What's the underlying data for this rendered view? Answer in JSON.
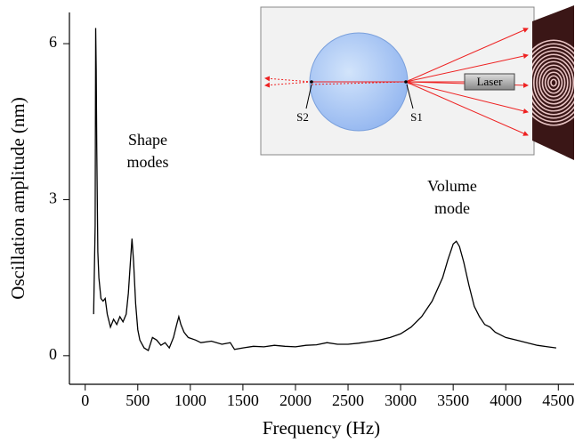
{
  "chart_data": {
    "type": "line",
    "x_label": "Frequency (Hz)",
    "y_label": "Oscillation amplitude (nm)",
    "annotations": [
      {
        "lines": [
          "Shape",
          "modes"
        ]
      },
      {
        "lines": [
          "Volume",
          "mode"
        ]
      }
    ],
    "inset_labels": [
      "S2",
      "S1",
      "Laser"
    ],
    "color": "#000000",
    "x": [
      80,
      95,
      100,
      105,
      110,
      120,
      130,
      150,
      170,
      190,
      210,
      240,
      270,
      300,
      330,
      360,
      390,
      410,
      430,
      445,
      460,
      480,
      500,
      520,
      560,
      600,
      640,
      680,
      720,
      760,
      800,
      840,
      870,
      890,
      910,
      940,
      980,
      1050,
      1100,
      1200,
      1300,
      1380,
      1420,
      1500,
      1600,
      1700,
      1800,
      1900,
      2000,
      2100,
      2200,
      2300,
      2400,
      2500,
      2600,
      2700,
      2800,
      2900,
      3000,
      3100,
      3200,
      3300,
      3400,
      3450,
      3500,
      3530,
      3560,
      3600,
      3650,
      3700,
      3750,
      3800,
      3850,
      3900,
      4000,
      4100,
      4200,
      4300,
      4400,
      4480
    ],
    "values": [
      0.8,
      2.5,
      6.3,
      5.5,
      4,
      2.0,
      1.5,
      1.1,
      1.05,
      1.1,
      0.8,
      0.55,
      0.7,
      0.6,
      0.75,
      0.65,
      0.8,
      1.2,
      1.8,
      2.25,
      1.8,
      1.0,
      0.5,
      0.3,
      0.15,
      0.1,
      0.35,
      0.3,
      0.2,
      0.25,
      0.15,
      0.35,
      0.6,
      0.75,
      0.6,
      0.45,
      0.35,
      0.3,
      0.25,
      0.28,
      0.22,
      0.25,
      0.12,
      0.15,
      0.18,
      0.17,
      0.2,
      0.18,
      0.17,
      0.2,
      0.21,
      0.25,
      0.22,
      0.22,
      0.24,
      0.27,
      0.3,
      0.35,
      0.42,
      0.55,
      0.75,
      1.05,
      1.5,
      1.85,
      2.15,
      2.2,
      2.1,
      1.8,
      1.35,
      0.95,
      0.75,
      0.6,
      0.55,
      0.45,
      0.35,
      0.3,
      0.25,
      0.2,
      0.17,
      0.15
    ],
    "xlim": [
      -150,
      4650
    ],
    "ylim": [
      -0.55,
      6.6
    ],
    "xticks": [
      0,
      500,
      1000,
      1500,
      2000,
      2500,
      3000,
      3500,
      4000,
      4500
    ],
    "yticks": [
      0,
      3,
      6
    ]
  }
}
